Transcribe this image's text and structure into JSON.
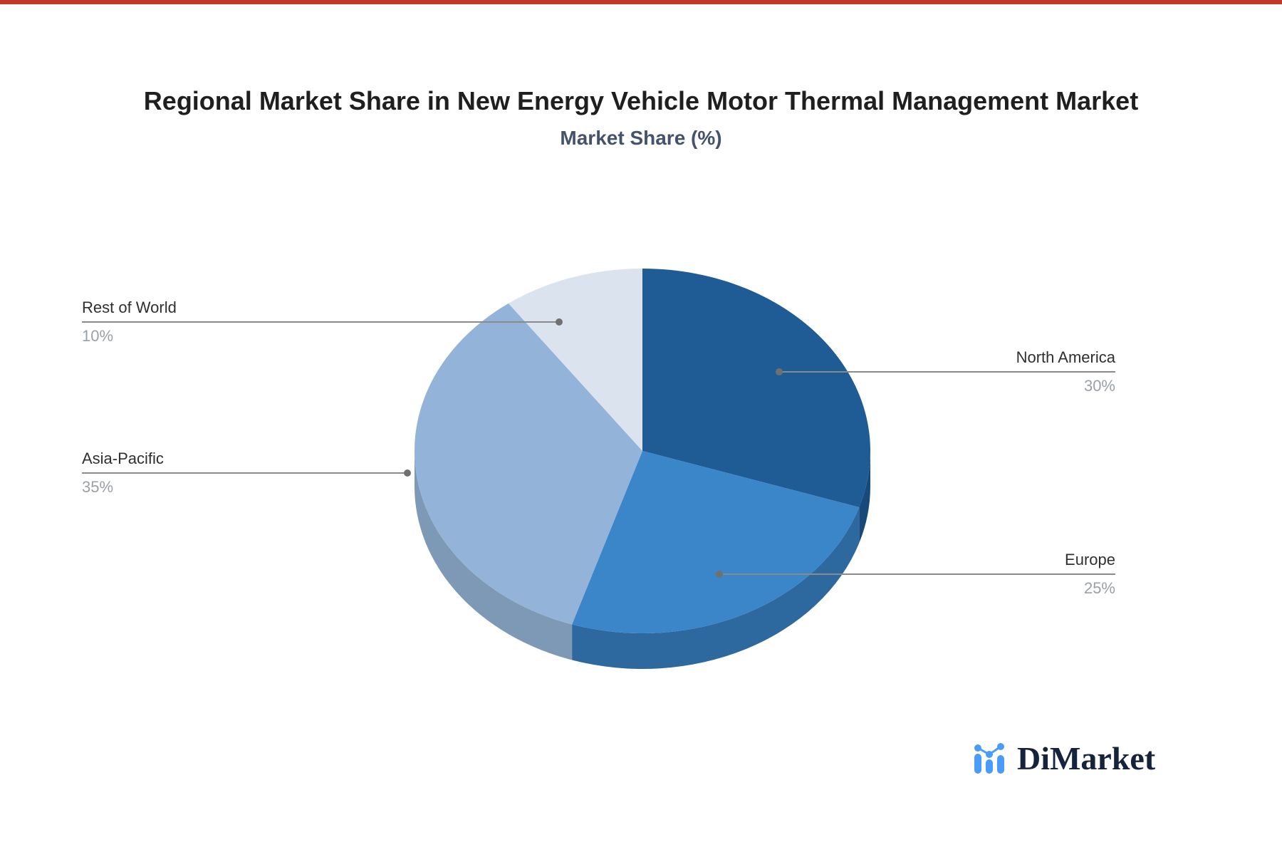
{
  "page": {
    "background": "#ffffff",
    "top_accent_color": "#c0392b"
  },
  "chart_data": {
    "type": "pie",
    "effect": "3d",
    "title": "Regional Market Share in New Energy Vehicle Motor Thermal Management Market",
    "subtitle": "Market Share (%)",
    "unit": "%",
    "start_angle_deg": 0,
    "direction": "clockwise",
    "legend_position": "callout-labels",
    "slices": [
      {
        "label": "North America",
        "value": 30,
        "pct_label": "30%",
        "color": "#1f5c96",
        "side_color": "#174a7a"
      },
      {
        "label": "Europe",
        "value": 25,
        "pct_label": "25%",
        "color": "#3a86c8",
        "side_color": "#2d689e"
      },
      {
        "label": "Asia-Pacific",
        "value": 35,
        "pct_label": "35%",
        "color": "#93b4d8",
        "side_color": "#7e99b5"
      },
      {
        "label": "Rest of World",
        "value": 10,
        "pct_label": "10%",
        "color": "#dbe3ee",
        "side_color": "#b9c6d6"
      }
    ]
  },
  "branding": {
    "logo_text": "DiMarket",
    "logo_text_color": "#16233c",
    "logo_icon": "bar-chart-trend-icon",
    "logo_icon_color": "#4a9cf6"
  }
}
